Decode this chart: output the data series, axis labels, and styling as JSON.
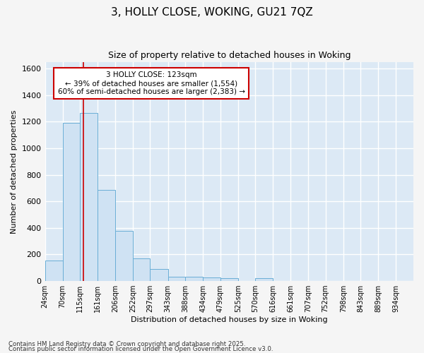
{
  "title1": "3, HOLLY CLOSE, WOKING, GU21 7QZ",
  "title2": "Size of property relative to detached houses in Woking",
  "xlabel": "Distribution of detached houses by size in Woking",
  "ylabel": "Number of detached properties",
  "bin_edges": [
    24,
    70,
    115,
    161,
    206,
    252,
    297,
    343,
    388,
    434,
    479,
    525,
    570,
    616,
    661,
    707,
    752,
    798,
    843,
    889,
    934,
    980
  ],
  "bin_labels": [
    "24sqm",
    "70sqm",
    "115sqm",
    "161sqm",
    "206sqm",
    "252sqm",
    "297sqm",
    "343sqm",
    "388sqm",
    "434sqm",
    "479sqm",
    "525sqm",
    "570sqm",
    "616sqm",
    "661sqm",
    "707sqm",
    "752sqm",
    "798sqm",
    "843sqm",
    "889sqm",
    "934sqm"
  ],
  "counts": [
    150,
    1190,
    1265,
    685,
    375,
    170,
    90,
    32,
    30,
    22,
    17,
    0,
    18,
    0,
    0,
    0,
    0,
    0,
    0,
    0,
    0
  ],
  "bar_color": "#cfe2f3",
  "bar_edge_color": "#6aaed6",
  "property_line_x": 123,
  "property_line_color": "#cc0000",
  "annotation_line1": "3 HOLLY CLOSE: 123sqm",
  "annotation_line2": "← 39% of detached houses are smaller (1,554)",
  "annotation_line3": "60% of semi-detached houses are larger (2,383) →",
  "annotation_box_color": "#ffffff",
  "annotation_box_edge_color": "#cc0000",
  "ylim": [
    0,
    1650
  ],
  "yticks": [
    0,
    200,
    400,
    600,
    800,
    1000,
    1200,
    1400,
    1600
  ],
  "xlim_left": 24,
  "xlim_right": 980,
  "background_color": "#dce9f5",
  "grid_color": "#ffffff",
  "fig_bg_color": "#f5f5f5",
  "footnote1": "Contains HM Land Registry data © Crown copyright and database right 2025.",
  "footnote2": "Contains public sector information licensed under the Open Government Licence v3.0."
}
